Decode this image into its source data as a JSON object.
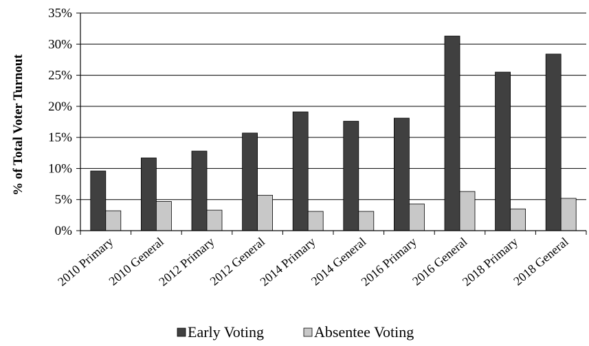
{
  "chart_data": {
    "type": "bar",
    "title": "",
    "xlabel": "",
    "ylabel": "% of Total Voter Turnout",
    "ylim": [
      0,
      35
    ],
    "ytick_labels": [
      "0%",
      "5%",
      "10%",
      "15%",
      "20%",
      "25%",
      "30%",
      "35%"
    ],
    "ytick_values": [
      0,
      5,
      10,
      15,
      20,
      25,
      30,
      35
    ],
    "grid": "horizontal",
    "legend_position": "bottom",
    "categories": [
      "2010 Primary",
      "2010 General",
      "2012 Primary",
      "2012 General",
      "2014 Primary",
      "2014 General",
      "2016 Primary",
      "2016 General",
      "2018 Primary",
      "2018 General"
    ],
    "series": [
      {
        "name": "Early Voting",
        "color": "#404040",
        "values": [
          9.6,
          11.7,
          12.8,
          15.7,
          19.1,
          17.6,
          18.1,
          31.3,
          25.5,
          28.4
        ]
      },
      {
        "name": "Absentee Voting",
        "color": "#c8c8c8",
        "values": [
          3.2,
          4.7,
          3.3,
          5.7,
          3.1,
          3.1,
          4.3,
          6.3,
          3.5,
          5.2
        ]
      }
    ]
  }
}
